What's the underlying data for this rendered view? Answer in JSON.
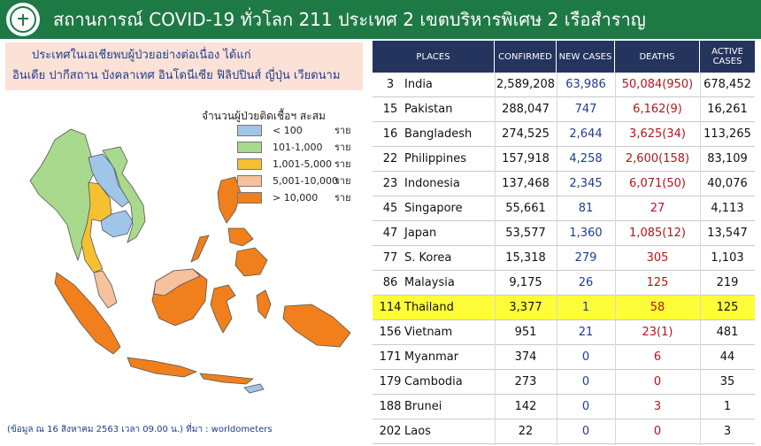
{
  "header": {
    "title": "สถานการณ์ COVID-19 ทั่วโลก 211 ประเทศ 2 เขตบริหารพิเศษ 2 เรือสำราญ"
  },
  "note": {
    "line1": "ประเทศในเอเชียพบผู้ป่วยอย่างต่อเนื่อง  ได้แก่",
    "line2": "อินเดีย ปากีสถาน บังคลาเทศ  อินโดนีเซีย ฟิลิปปินส์ ญี่ปุ่น เวียดนาม"
  },
  "legend": {
    "title": "จำนวนผู้ป่วยติดเชื้อฯ สะสม",
    "unit": "ราย",
    "items": [
      {
        "range": "< 100",
        "color": "#9fc5e8"
      },
      {
        "range": "101-1,000",
        "color": "#a9d98c"
      },
      {
        "range": "1,001-5,000",
        "color": "#f5c132"
      },
      {
        "range": "5,001-10,000",
        "color": "#f6c19c"
      },
      {
        "range": "> 10,000",
        "color": "#f07f1c"
      }
    ]
  },
  "footnote": "(ข้อมูล ณ 16 สิงหาคม 2563 เวลา 09.00 น.) ที่มา : worldometers",
  "table": {
    "headers": {
      "places": "PLACES",
      "confirmed": "CONFIRMED",
      "new_cases": "NEW  CASES",
      "deaths": "DEATHS",
      "active": "ACTIVE CASES"
    },
    "header_color": "#24345d",
    "highlight_color": "#fffd38",
    "rows": [
      {
        "rank": "3",
        "place": "India",
        "confirmed": "2,589,208",
        "new": "63,986",
        "deaths": "50,084(950)",
        "active": "678,452",
        "highlight": false
      },
      {
        "rank": "15",
        "place": "Pakistan",
        "confirmed": "288,047",
        "new": "747",
        "deaths": "6,162(9)",
        "active": "16,261",
        "highlight": false
      },
      {
        "rank": "16",
        "place": "Bangladesh",
        "confirmed": "274,525",
        "new": "2,644",
        "deaths": "3,625(34)",
        "active": "113,265",
        "highlight": false
      },
      {
        "rank": "22",
        "place": "Philippines",
        "confirmed": "157,918",
        "new": "4,258",
        "deaths": "2,600(158)",
        "active": "83,109",
        "highlight": false
      },
      {
        "rank": "23",
        "place": "Indonesia",
        "confirmed": "137,468",
        "new": "2,345",
        "deaths": "6,071(50)",
        "active": "40,076",
        "highlight": false
      },
      {
        "rank": "45",
        "place": "Singapore",
        "confirmed": "55,661",
        "new": "81",
        "deaths": "27",
        "active": "4,113",
        "highlight": false
      },
      {
        "rank": "47",
        "place": "Japan",
        "confirmed": "53,577",
        "new": "1,360",
        "deaths": "1,085(12)",
        "active": "13,547",
        "highlight": false
      },
      {
        "rank": "77",
        "place": "S. Korea",
        "confirmed": "15,318",
        "new": "279",
        "deaths": "305",
        "active": "1,103",
        "highlight": false
      },
      {
        "rank": "86",
        "place": "Malaysia",
        "confirmed": "9,175",
        "new": "26",
        "deaths": "125",
        "active": "219",
        "highlight": false
      },
      {
        "rank": "114",
        "place": "Thailand",
        "confirmed": "3,377",
        "new": "1",
        "deaths": "58",
        "active": "125",
        "highlight": true
      },
      {
        "rank": "156",
        "place": "Vietnam",
        "confirmed": "951",
        "new": "21",
        "deaths": "23(1)",
        "active": "481",
        "highlight": false
      },
      {
        "rank": "171",
        "place": "Myanmar",
        "confirmed": "374",
        "new": "0",
        "deaths": "6",
        "active": "44",
        "highlight": false
      },
      {
        "rank": "179",
        "place": "Cambodia",
        "confirmed": "273",
        "new": "0",
        "deaths": "0",
        "active": "35",
        "highlight": false
      },
      {
        "rank": "188",
        "place": "Brunei",
        "confirmed": "142",
        "new": "0",
        "deaths": "3",
        "active": "1",
        "highlight": false
      },
      {
        "rank": "202",
        "place": "Laos",
        "confirmed": "22",
        "new": "0",
        "deaths": "0",
        "active": "3",
        "highlight": false
      }
    ]
  }
}
